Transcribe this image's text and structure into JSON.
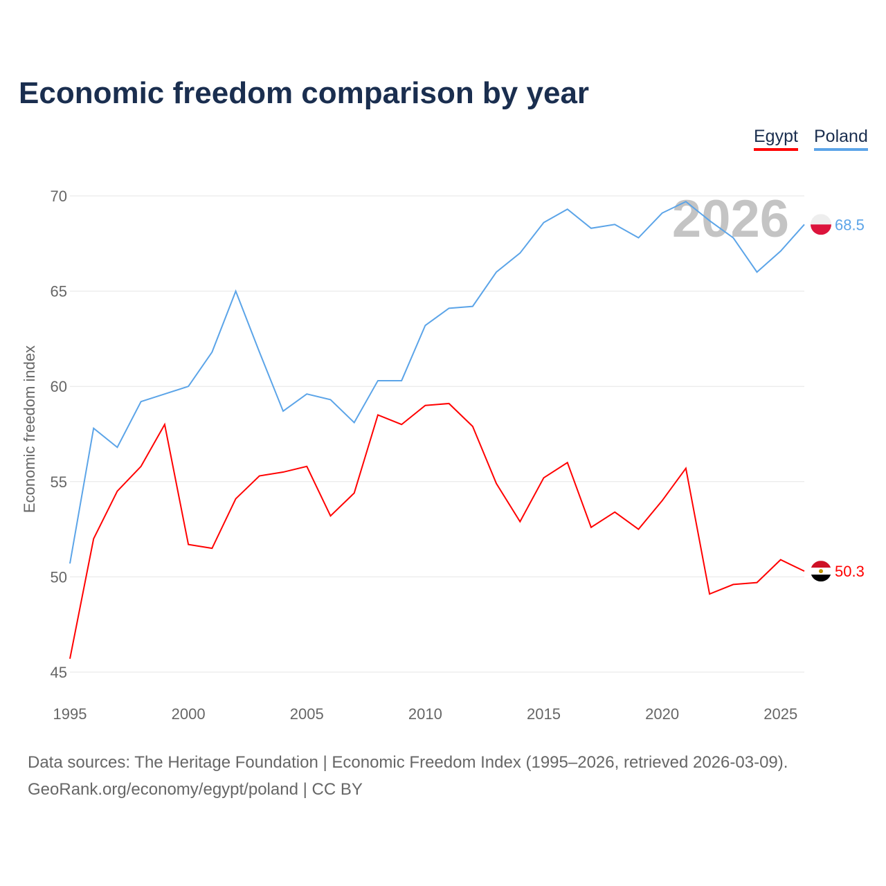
{
  "chart_data": {
    "type": "line",
    "title": "Economic freedom comparison by year",
    "xlabel": "",
    "ylabel": "Economic freedom index",
    "xlim": [
      1995,
      2026
    ],
    "ylim": [
      45,
      70
    ],
    "yticks": [
      "45",
      "50",
      "55",
      "60",
      "65",
      "70"
    ],
    "xticks": [
      "1995",
      "2000",
      "2005",
      "2010",
      "2015",
      "2020",
      "2025"
    ],
    "grid": true,
    "legend_placement": "top-right",
    "watermark_year": "2026",
    "x": [
      1995,
      1996,
      1997,
      1998,
      1999,
      2000,
      2001,
      2002,
      2003,
      2004,
      2005,
      2006,
      2007,
      2008,
      2009,
      2010,
      2011,
      2012,
      2013,
      2014,
      2015,
      2016,
      2017,
      2018,
      2019,
      2020,
      2021,
      2022,
      2023,
      2024,
      2025,
      2026
    ],
    "series": [
      {
        "name": "Egypt",
        "color": "#ff0000",
        "end_label": "50.3",
        "values": [
          45.7,
          52.0,
          54.5,
          55.8,
          58.0,
          51.7,
          51.5,
          54.1,
          55.3,
          55.5,
          55.8,
          53.2,
          54.4,
          58.5,
          58.0,
          59.0,
          59.1,
          57.9,
          54.9,
          52.9,
          55.2,
          56.0,
          52.6,
          53.4,
          52.5,
          54.0,
          55.7,
          49.1,
          49.6,
          49.7,
          50.9,
          50.3
        ]
      },
      {
        "name": "Poland",
        "color": "#5ba4e8",
        "end_label": "68.5",
        "values": [
          50.7,
          57.8,
          56.8,
          59.2,
          59.6,
          60.0,
          61.8,
          65.0,
          61.8,
          58.7,
          59.6,
          59.3,
          58.1,
          60.3,
          60.3,
          63.2,
          64.1,
          64.2,
          66.0,
          67.0,
          68.6,
          69.3,
          68.3,
          68.5,
          67.8,
          69.1,
          69.7,
          68.7,
          67.8,
          66.0,
          67.1,
          68.5
        ]
      }
    ]
  },
  "footer": {
    "line1": "Data sources: The Heritage Foundation | Economic Freedom Index (1995–2026, retrieved 2026-03-09).",
    "line2": "GeoRank.org/economy/egypt/poland | CC BY"
  }
}
